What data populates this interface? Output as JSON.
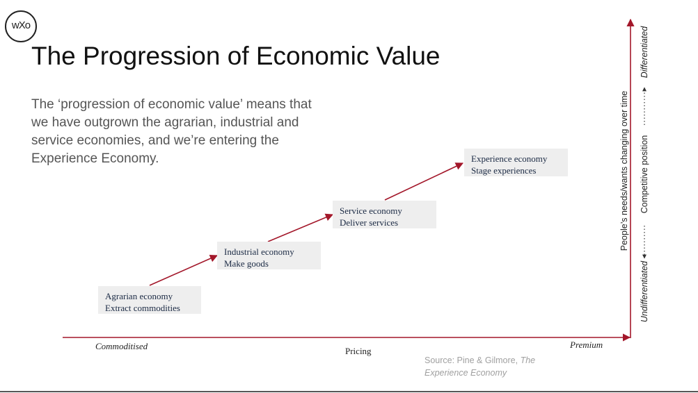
{
  "logo": {
    "text": "wXo"
  },
  "title": "The Progression of Economic Value",
  "intro": {
    "lines": [
      "The ‘progression of economic value’ means that",
      "we have outgrown the agrarian, industrial and",
      "service economies, and we’re entering the",
      "Experience Economy."
    ]
  },
  "stages": [
    {
      "name": "Agrarian economy",
      "action": "Extract commodities"
    },
    {
      "name": "Industrial economy",
      "action": "Make goods"
    },
    {
      "name": "Service economy",
      "action": "Deliver services"
    },
    {
      "name": "Experience economy",
      "action": "Stage experiences"
    }
  ],
  "x_axis": {
    "label": "Pricing",
    "low": "Commoditised",
    "high": "Premium"
  },
  "y_axis": {
    "label": "People’s needs/wants changing over time",
    "secondary_label": "Competitive position",
    "low": "Undifferentiated",
    "high": "Differentiated"
  },
  "source": {
    "prefix": "Source: Pine & Gilmore, ",
    "work_line1": "The",
    "work_line2": "Experience Economy"
  },
  "colors": {
    "arrow": "#a3172a",
    "box_bg": "#eeeeee",
    "box_text": "#1b2a44"
  }
}
